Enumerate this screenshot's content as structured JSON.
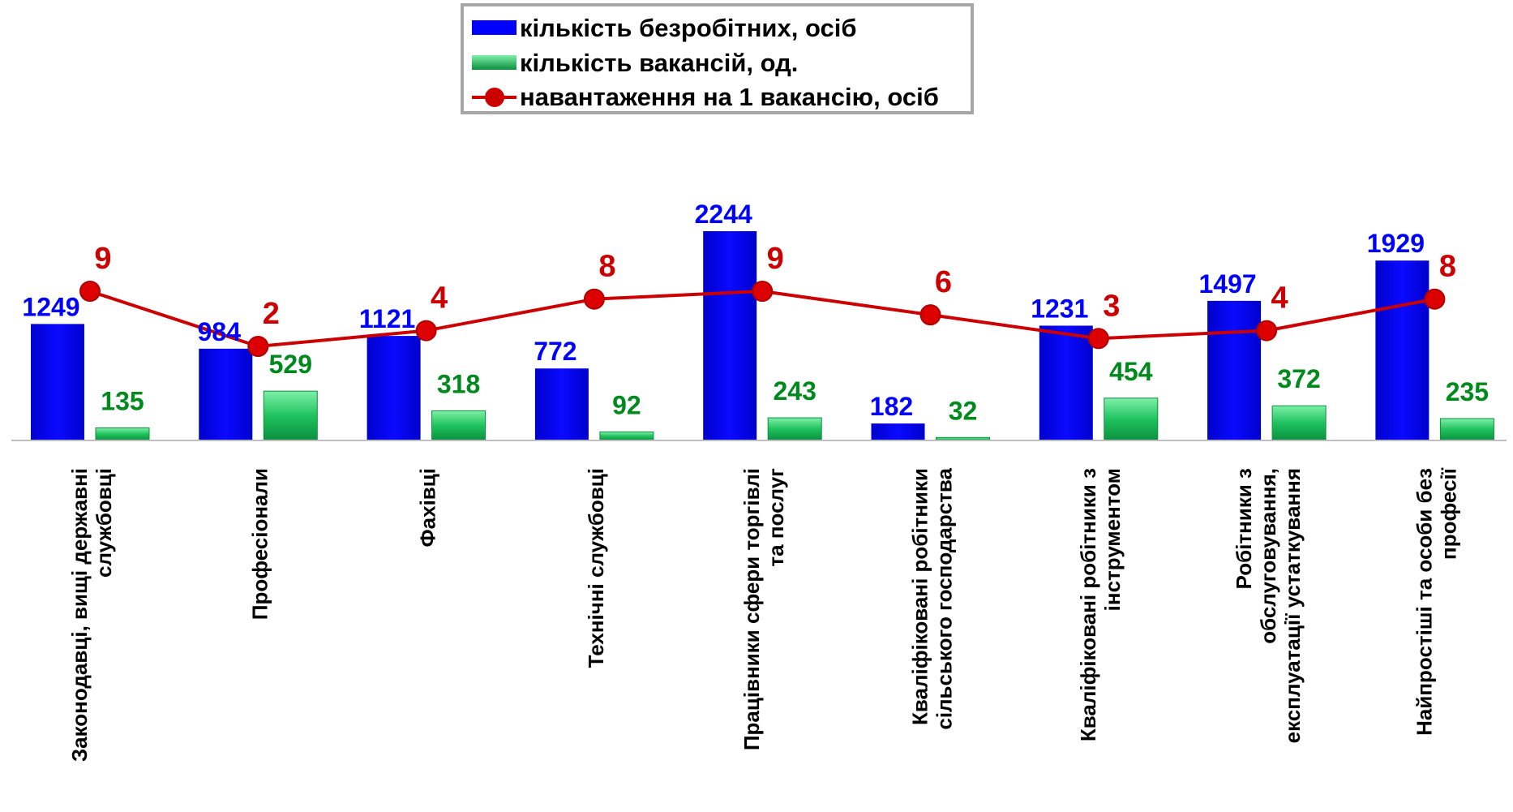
{
  "chart_data": {
    "type": "bar",
    "categories": [
      "Законодавці, вищі державні службовці",
      "Професіонали",
      "Фахівці",
      "Технічні службовці",
      "Працівники сфери торгівлі та послуг",
      "Кваліфіковані робітники сільського господарства",
      "Кваліфіковані робітники з інструментом",
      "Робітники з обслуговування, експлуатації устаткування",
      "Найпростіші та особи без професії"
    ],
    "series": [
      {
        "name": "кількість безробітних, осіб",
        "type": "bar",
        "color": "#0000ff",
        "values": [
          1249,
          984,
          1121,
          772,
          2244,
          182,
          1231,
          1497,
          1929
        ]
      },
      {
        "name": "кількість вакансій, од.",
        "type": "bar",
        "color": "#00b050",
        "values": [
          135,
          529,
          318,
          92,
          243,
          32,
          454,
          372,
          235
        ]
      },
      {
        "name": "навантаження на 1 вакансію, осіб",
        "type": "line",
        "color": "#cc0000",
        "values": [
          9,
          2,
          4,
          8,
          9,
          6,
          3,
          4,
          8
        ]
      }
    ],
    "legend_position": "top",
    "grid": false
  }
}
